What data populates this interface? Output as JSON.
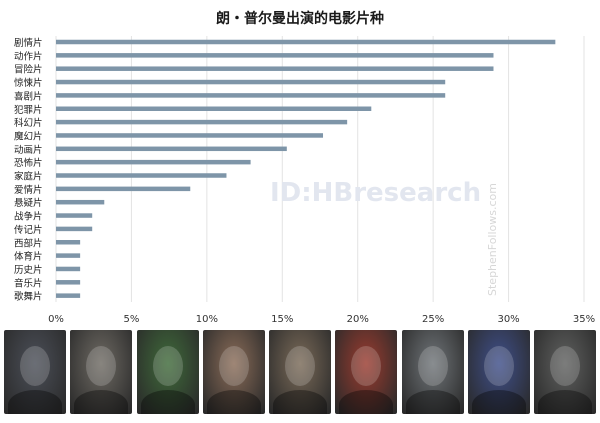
{
  "title": "朗・普尔曼出演的电影片种",
  "watermarks": [
    "ID:HBresearch",
    "StephenFollows.com"
  ],
  "chart_data": {
    "type": "bar",
    "orientation": "horizontal",
    "title": "朗・普尔曼出演的电影片种",
    "categories": [
      "剧情片",
      "动作片",
      "冒险片",
      "惊悚片",
      "喜剧片",
      "犯罪片",
      "科幻片",
      "魔幻片",
      "动画片",
      "恐怖片",
      "家庭片",
      "爱情片",
      "悬疑片",
      "战争片",
      "传记片",
      "西部片",
      "体育片",
      "历史片",
      "音乐片",
      "歌舞片"
    ],
    "values": [
      33.1,
      29.0,
      29.0,
      25.8,
      25.8,
      20.9,
      19.3,
      17.7,
      15.3,
      12.9,
      11.3,
      8.9,
      3.2,
      2.4,
      2.4,
      1.6,
      1.6,
      1.6,
      1.6,
      1.6
    ],
    "xlim": [
      0,
      35
    ],
    "xticks": [
      "0%",
      "5%",
      "10%",
      "15%",
      "20%",
      "25%",
      "30%",
      "35%"
    ],
    "bar_color": "#7e95a8",
    "grid": true
  },
  "portraits": [
    {
      "name": "portrait-navy-cap",
      "color": "#4b4f58"
    },
    {
      "name": "portrait-hermit",
      "color": "#6e6a63"
    },
    {
      "name": "portrait-green-cartoon",
      "color": "#3f6a3a"
    },
    {
      "name": "portrait-man-suit",
      "color": "#8a6c58"
    },
    {
      "name": "portrait-man-closeup",
      "color": "#7a6a58"
    },
    {
      "name": "portrait-hellboy",
      "color": "#9a3b2f"
    },
    {
      "name": "portrait-grey-man",
      "color": "#6f7478"
    },
    {
      "name": "portrait-blue-cartoon",
      "color": "#3f4f8a"
    },
    {
      "name": "portrait-grey-hair-man",
      "color": "#5f605f"
    }
  ]
}
